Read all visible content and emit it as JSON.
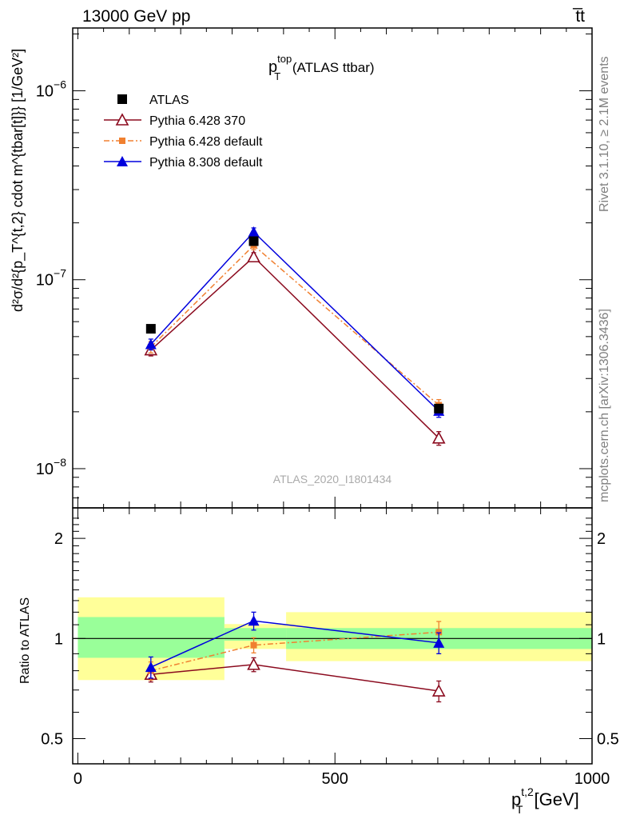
{
  "header": {
    "left": "13000 GeV pp",
    "right": "t̅t"
  },
  "side_text": {
    "rivet": "Rivet 3.1.10, ≥ 2.1M events",
    "mcplots": "mcplots.cern.ch [arXiv:1306.3436]"
  },
  "watermark": "ATLAS_2020_I1801434",
  "plot_title": {
    "main": "p",
    "sup": "top",
    "sub": "T",
    "suffix": " (ATLAS ttbar)"
  },
  "ratio_ylabel": "Ratio to ATLAS",
  "xlabel": {
    "main": "p",
    "sup": "t,2",
    "sub": "T",
    "suffix": " [GeV]"
  },
  "ylabel": "d²σ/d²{p_T^{t,2} cdot m^{tbar[t]}} [1/GeV²]",
  "colors": {
    "data": "#000000",
    "p370": "#8b0a1e",
    "p6def": "#f08030",
    "p8def": "#0000dd",
    "band_inner": "#99ff99",
    "band_outer": "#ffff99"
  },
  "chart_data": [
    {
      "type": "scatter",
      "panel": "main",
      "yscale": "log",
      "xlim": [
        -10,
        1000
      ],
      "ylim": [
        6.2e-09,
        2.15e-06
      ],
      "y_ticks": [
        {
          "value": 1e-08,
          "label": "10",
          "exp": "−8"
        },
        {
          "value": 1e-07,
          "label": "10",
          "exp": "−7"
        },
        {
          "value": 1e-06,
          "label": "10",
          "exp": "−6"
        }
      ],
      "series": [
        {
          "name": "ATLAS",
          "key": "data",
          "marker": "square",
          "x": [
            142,
            342,
            702
          ],
          "y": [
            5.5e-08,
            1.6e-07,
            2.08e-08
          ],
          "yerr": [
            [
              0,
              0
            ],
            [
              0,
              0
            ],
            [
              0,
              0
            ]
          ]
        },
        {
          "name": "Pythia 6.428 370",
          "key": "p370",
          "marker": "open-triangle",
          "x": [
            142,
            342,
            702
          ],
          "y": [
            4.25e-08,
            1.32e-07,
            1.45e-08
          ],
          "yerr": [
            [
              3e-09,
              3e-09
            ],
            [
              7e-09,
              7e-09
            ],
            [
              1.2e-09,
              1.2e-09
            ]
          ]
        },
        {
          "name": "Pythia 6.428 default",
          "key": "p6def",
          "marker": "small-square",
          "dashed": true,
          "x": [
            142,
            342,
            702
          ],
          "y": [
            4.4e-08,
            1.52e-07,
            2.17e-08
          ],
          "yerr": [
            [
              3e-09,
              3e-09
            ],
            [
              8e-09,
              8e-09
            ],
            [
              1.5e-09,
              1.5e-09
            ]
          ]
        },
        {
          "name": "Pythia 8.308 default",
          "key": "p8def",
          "marker": "filled-triangle",
          "x": [
            142,
            342,
            702
          ],
          "y": [
            4.55e-08,
            1.79e-07,
            2.02e-08
          ],
          "yerr": [
            [
              3e-09,
              3e-09
            ],
            [
              9e-09,
              9e-09
            ],
            [
              1.5e-09,
              1.5e-09
            ]
          ]
        }
      ]
    },
    {
      "type": "scatter",
      "panel": "ratio",
      "yscale": "log",
      "xlim": [
        -10,
        1000
      ],
      "ylim": [
        0.42,
        2.47
      ],
      "x_ticks": [
        0,
        500,
        1000
      ],
      "y_ticks": [
        0.5,
        1,
        2
      ],
      "reference_line": 1,
      "bands": [
        {
          "x": [
            0,
            285
          ],
          "inner": [
            0.875,
            1.16
          ],
          "outer": [
            0.75,
            1.33
          ]
        },
        {
          "x": [
            285,
            405
          ],
          "inner": [
            0.985,
            1.075
          ],
          "outer": [
            0.93,
            1.105
          ]
        },
        {
          "x": [
            405,
            1000
          ],
          "inner": [
            0.93,
            1.075
          ],
          "outer": [
            0.855,
            1.2
          ]
        }
      ],
      "series": [
        {
          "name": "Pythia 6.428 370",
          "key": "p370",
          "marker": "open-triangle",
          "x": [
            142,
            342,
            702
          ],
          "y": [
            0.78,
            0.835,
            0.695
          ],
          "yerr": [
            [
              0.04,
              0.04
            ],
            [
              0.04,
              0.04
            ],
            [
              0.05,
              0.05
            ]
          ]
        },
        {
          "name": "Pythia 6.428 default",
          "key": "p6def",
          "marker": "small-square",
          "dashed": true,
          "x": [
            142,
            342,
            702
          ],
          "y": [
            0.8,
            0.955,
            1.045
          ],
          "yerr": [
            [
              0.05,
              0.05
            ],
            [
              0.05,
              0.05
            ],
            [
              0.08,
              0.08
            ]
          ]
        },
        {
          "name": "Pythia 8.308 default",
          "key": "p8def",
          "marker": "filled-triangle",
          "x": [
            142,
            342,
            702
          ],
          "y": [
            0.82,
            1.13,
            0.97
          ],
          "yerr": [
            [
              0.06,
              0.06
            ],
            [
              0.07,
              0.07
            ],
            [
              0.07,
              0.07
            ]
          ]
        }
      ]
    }
  ]
}
